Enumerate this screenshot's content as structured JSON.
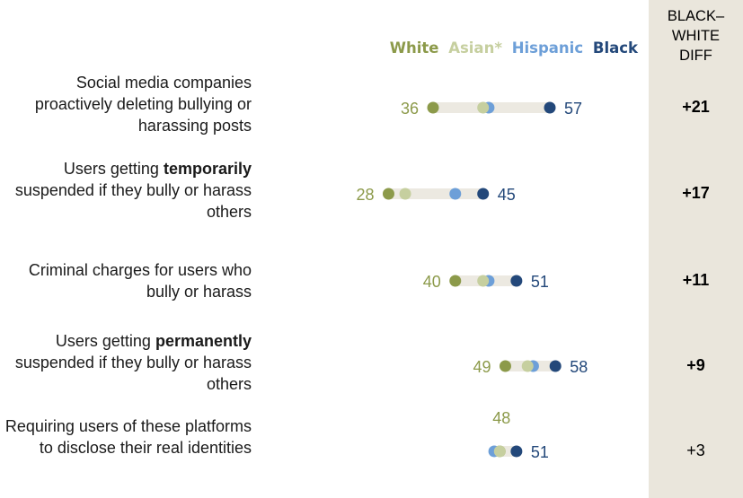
{
  "chart_data": {
    "type": "dot-range",
    "legend": [
      {
        "name": "White",
        "color": "#8c9a4a"
      },
      {
        "name": "Asian*",
        "color": "#c6cf9f"
      },
      {
        "name": "Hispanic",
        "color": "#6d9fd8"
      },
      {
        "name": "Black",
        "color": "#23487a"
      }
    ],
    "diff_header": [
      "BLACK–",
      "WHITE",
      "DIFF"
    ],
    "rows": [
      {
        "pre": "Social media companies proactively deleting bullying or harassing posts",
        "emph": "",
        "post": "",
        "white": 36,
        "asian": 45,
        "hispanic": 46,
        "black": 57,
        "diff": "+21",
        "diff_bold": true
      },
      {
        "pre": "Users getting ",
        "emph": "temporarily",
        "post": " suspended if they bully or harass others",
        "white": 28,
        "asian": 31,
        "hispanic": 40,
        "black": 45,
        "diff": "+17",
        "diff_bold": true
      },
      {
        "pre": "Criminal charges for users who bully or harass",
        "emph": "",
        "post": "",
        "white": 40,
        "asian": 45,
        "hispanic": 46,
        "black": 51,
        "diff": "+11",
        "diff_bold": true
      },
      {
        "pre": "Users getting ",
        "emph": "permanently",
        "post": " suspended if they bully or harass others",
        "white": 49,
        "asian": 53,
        "hispanic": 54,
        "black": 58,
        "diff": "+9",
        "diff_bold": true
      },
      {
        "pre": "Requiring users of these platforms to disclose their real identities",
        "emph": "",
        "post": "",
        "white": 48,
        "asian": 48,
        "hispanic": 47,
        "black": 51,
        "diff": "+3",
        "diff_bold": false
      }
    ]
  }
}
